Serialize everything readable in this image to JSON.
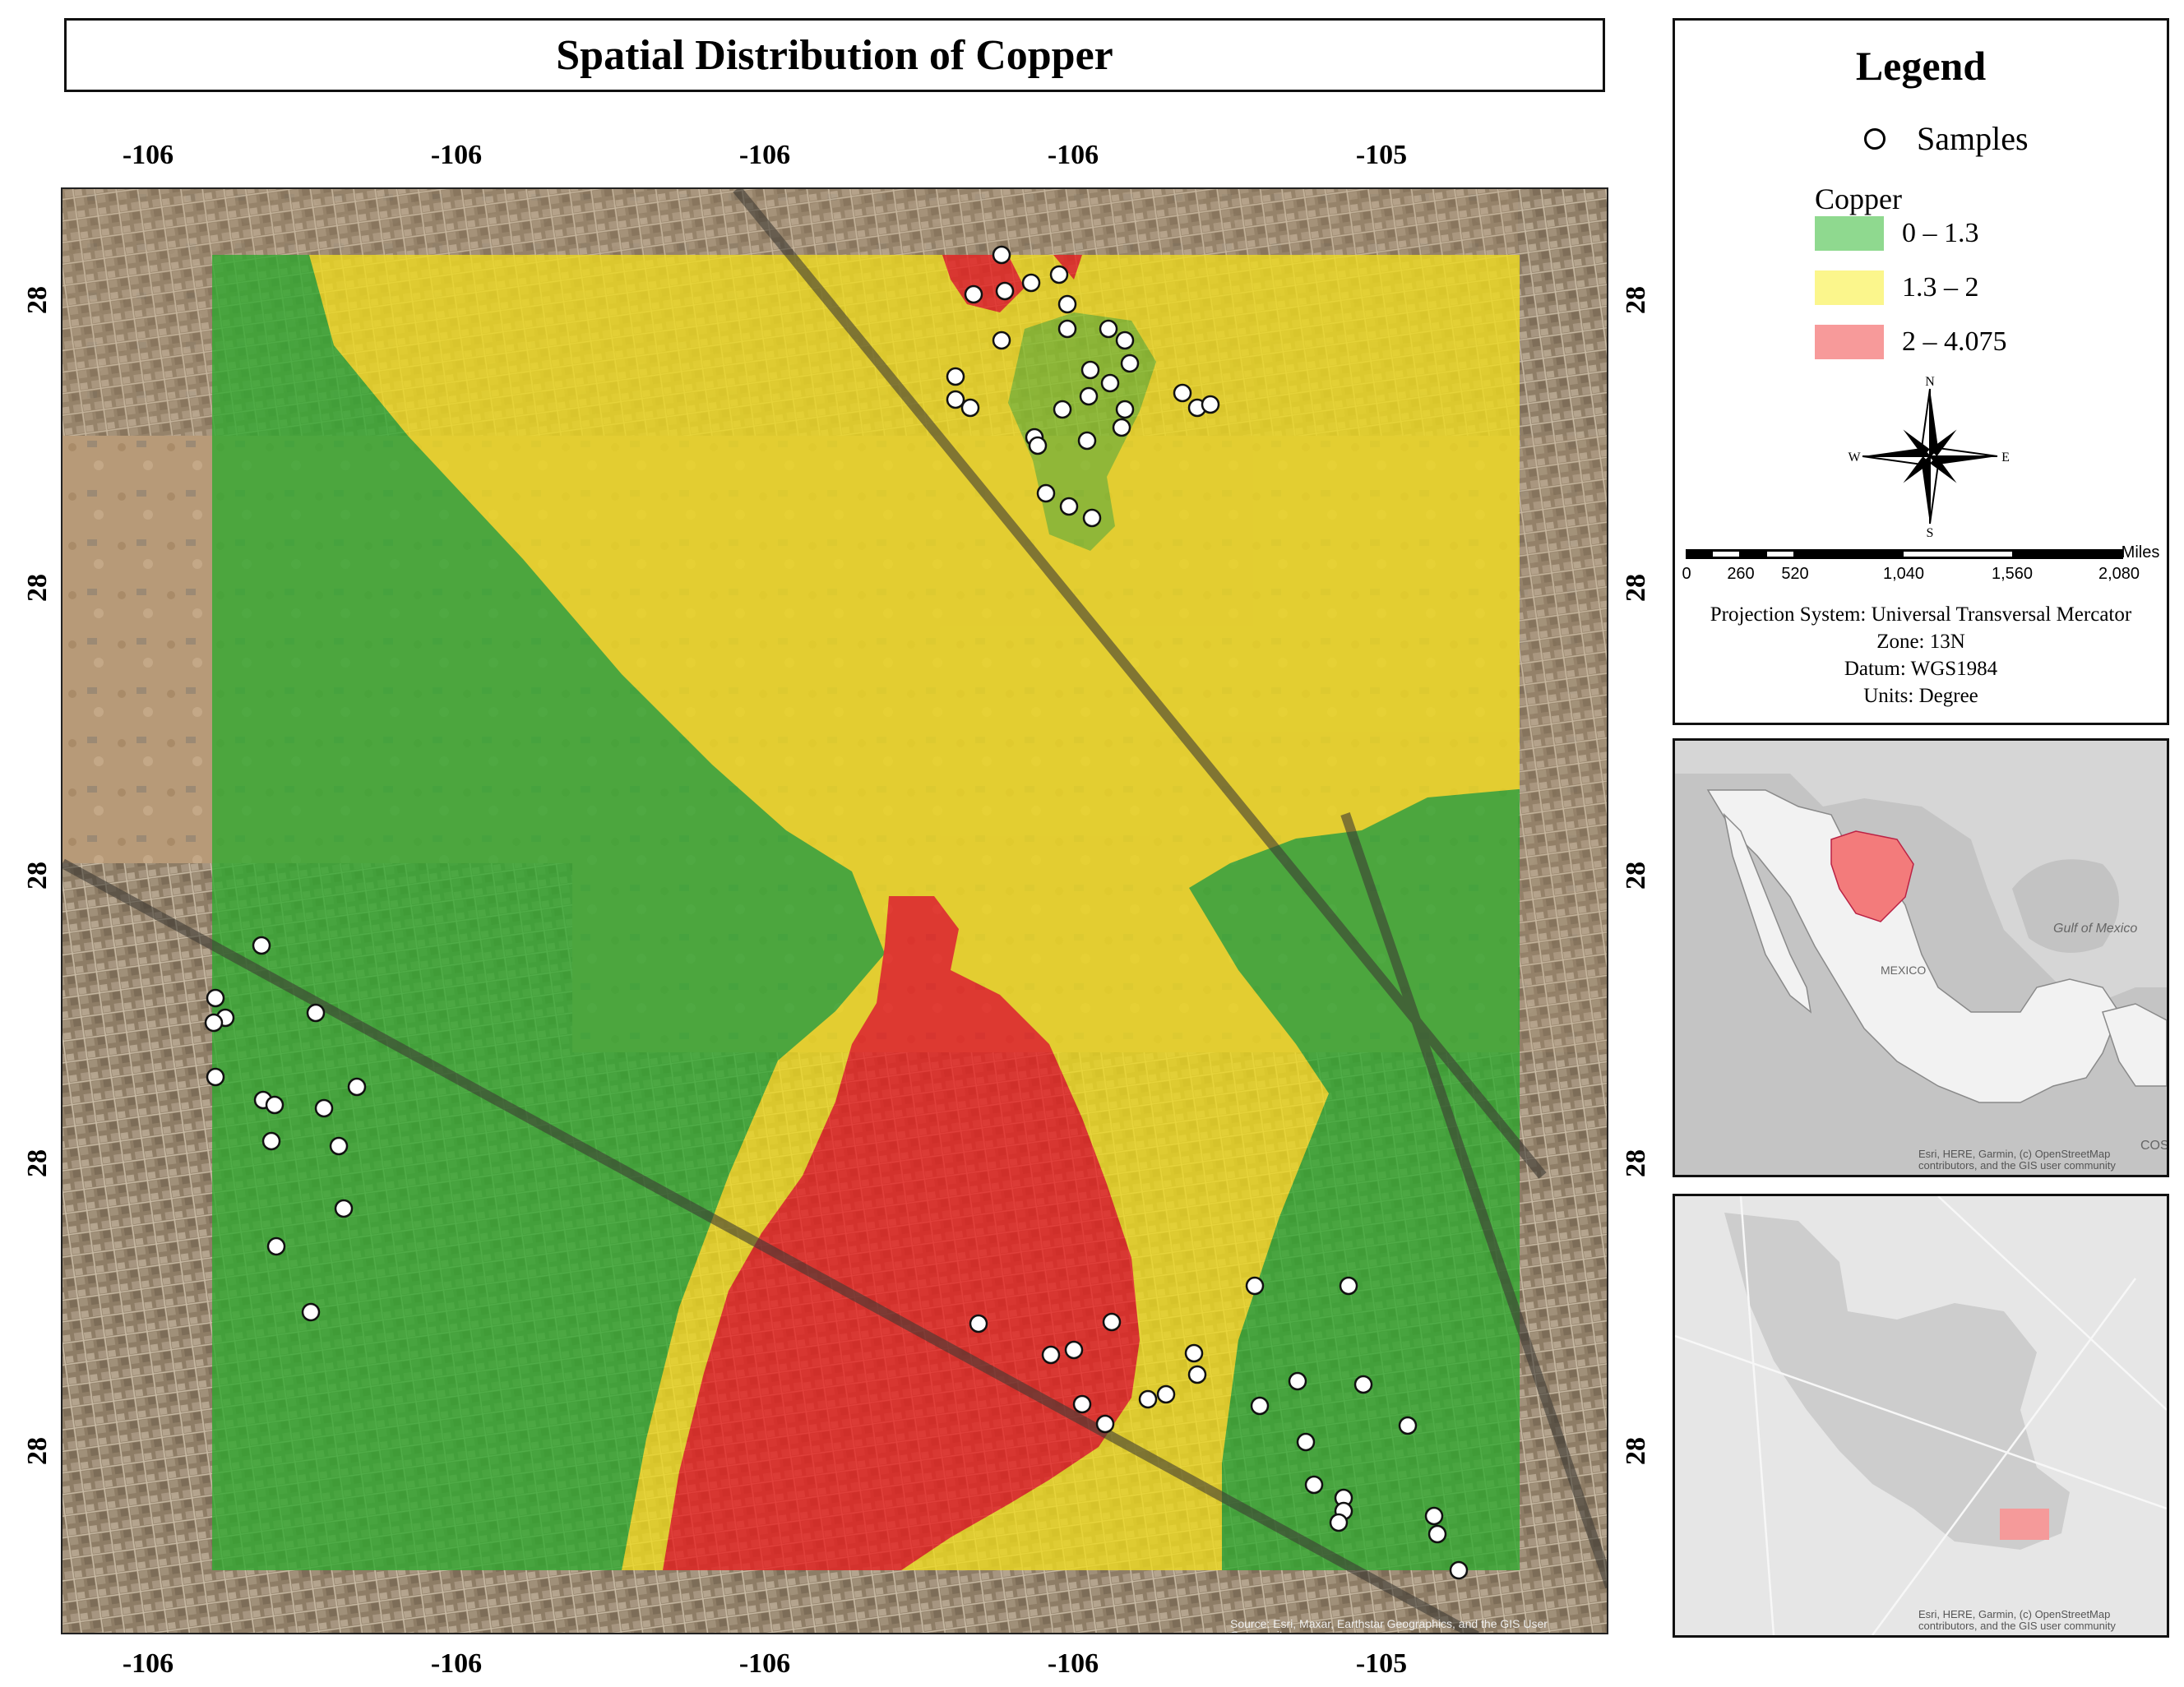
{
  "title": "Spatial Distribution of Copper",
  "axes": {
    "top": [
      "-106",
      "-106",
      "-106",
      "-106",
      "-105"
    ],
    "bottom": [
      "-106",
      "-106",
      "-106",
      "-106",
      "-105"
    ],
    "left": [
      "28",
      "28",
      "28",
      "28",
      "28"
    ],
    "right": [
      "28",
      "28",
      "28",
      "28",
      "28"
    ]
  },
  "map_attribution": "Source: Esri, Maxar, Earthstar Geographics, and the GIS User Community",
  "legend": {
    "title": "Legend",
    "samples_label": "Samples",
    "copper_label": "Copper",
    "classes": [
      {
        "label": "0 – 1.3",
        "color": "#8fd98f"
      },
      {
        "label": "1.3 – 2",
        "color": "#fbf68c"
      },
      {
        "label": "2 – 4.075",
        "color": "#f79a9a"
      }
    ],
    "north": {
      "n": "N",
      "s": "S",
      "e": "E",
      "w": "W"
    },
    "scale": {
      "unit": "Miles",
      "labels": [
        "0",
        "260",
        "520",
        "1,040",
        "1,560",
        "2,080"
      ]
    },
    "projection": "Projection System: Universal Transversal Mercator",
    "zone": "Zone: 13N",
    "datum": "Datum: WGS1984",
    "units": "Units: Degree"
  },
  "inset_country": {
    "labels": [
      "MEXICO",
      "Gulf of\nMexico",
      "COST"
    ],
    "attribution": "Esri, HERE, Garmin, (c) OpenStreetMap\ncontributors, and the GIS user community",
    "highlight_color": "#f37b7b"
  },
  "inset_city": {
    "attribution": "Esri, HERE, Garmin, (c) OpenStreetMap\ncontributors, and the GIS user community",
    "highlight_color": "#f59a9a"
  },
  "colors": {
    "low": "#2faa2f",
    "mid": "#f0dc1e",
    "high": "#e81e1e",
    "basemap": "#8a7a62"
  }
}
